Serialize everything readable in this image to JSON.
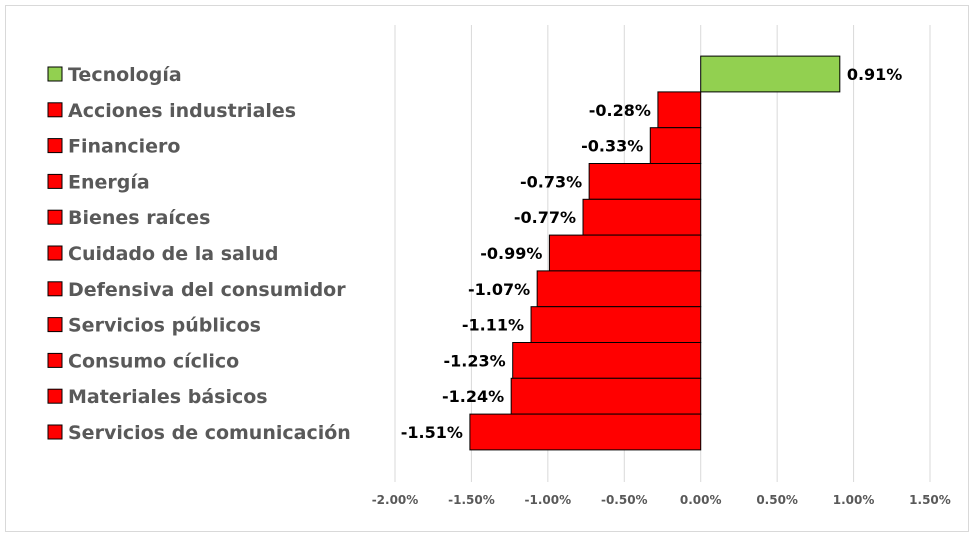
{
  "chart_data": {
    "type": "bar",
    "orientation": "horizontal",
    "categories": [
      "Tecnología",
      "Acciones industriales",
      "Financiero",
      "Energía",
      "Bienes raíces",
      "Cuidado de la salud",
      "Defensiva del consumidor",
      "Servicios públicos",
      "Consumo cíclico",
      "Materiales básicos",
      "Servicios de comunicación"
    ],
    "values": [
      0.91,
      -0.28,
      -0.33,
      -0.73,
      -0.77,
      -0.99,
      -1.07,
      -1.11,
      -1.23,
      -1.24,
      -1.51
    ],
    "value_labels": [
      "0.91%",
      "-0.28%",
      "-0.33%",
      "-0.73%",
      "-0.77%",
      "-0.99%",
      "-1.07%",
      "-1.11%",
      "-1.23%",
      "-1.24%",
      "-1.51%"
    ],
    "xlim": [
      -2.0,
      1.5
    ],
    "x_ticks": [
      -2.0,
      -1.5,
      -1.0,
      -0.5,
      0.0,
      0.5,
      1.0,
      1.5
    ],
    "x_tick_labels": [
      "-2.00%",
      "-1.50%",
      "-1.00%",
      "-0.50%",
      "0.00%",
      "0.50%",
      "1.00%",
      "1.50%"
    ],
    "legend_position": "left",
    "grid": true,
    "colors": {
      "positive": "#92d050",
      "negative": "#ff0000",
      "border": "#000000",
      "gridline": "#d9d9d9"
    }
  }
}
